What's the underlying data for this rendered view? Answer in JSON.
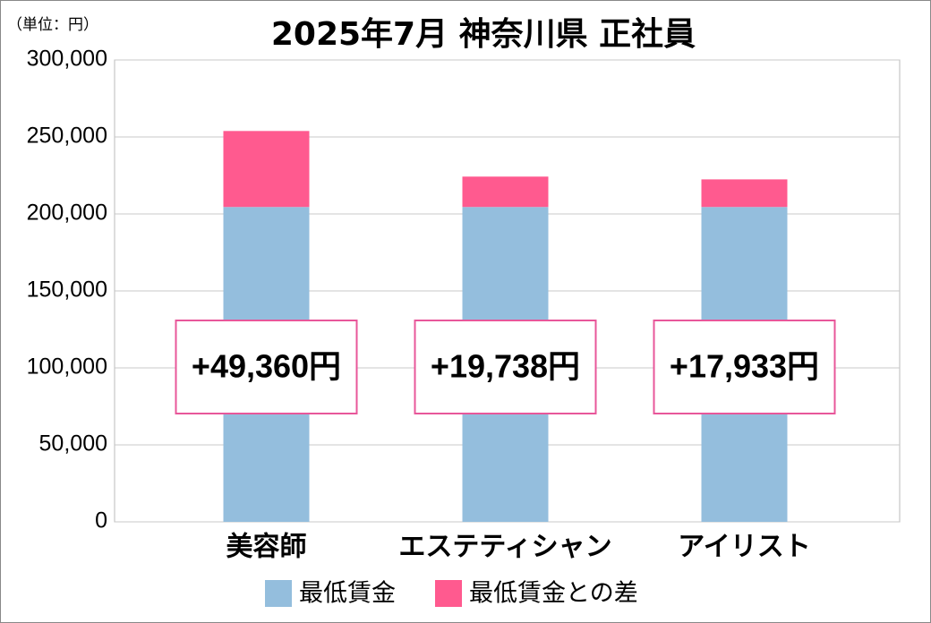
{
  "chart_data": {
    "type": "stacked_bar",
    "title": "2025年7月 神奈川県 正社員",
    "unit_label": "（単位：円）",
    "categories": [
      "美容師",
      "エステティシャン",
      "アイリスト"
    ],
    "series": [
      {
        "name": "最低賃金",
        "color": "#94bedd",
        "values": [
          204512,
          204512,
          204512
        ]
      },
      {
        "name": "最低賃金との差",
        "color": "#ff5a8f",
        "values": [
          49360,
          19738,
          17933
        ],
        "value_labels": [
          "+49,360円",
          "+19,738円",
          "+17,933円"
        ]
      }
    ],
    "ylim": [
      0,
      300000
    ],
    "yticks": [
      0,
      {
        "value": 50000,
        "label": "50,000"
      },
      {
        "value": 100000,
        "label": "100,000"
      },
      {
        "value": 150000,
        "label": "150,000"
      },
      {
        "value": 200000,
        "label": "200,000"
      },
      {
        "value": 250000,
        "label": "250,000"
      },
      {
        "value": 300000,
        "label": "300,000"
      }
    ],
    "grid": true
  }
}
